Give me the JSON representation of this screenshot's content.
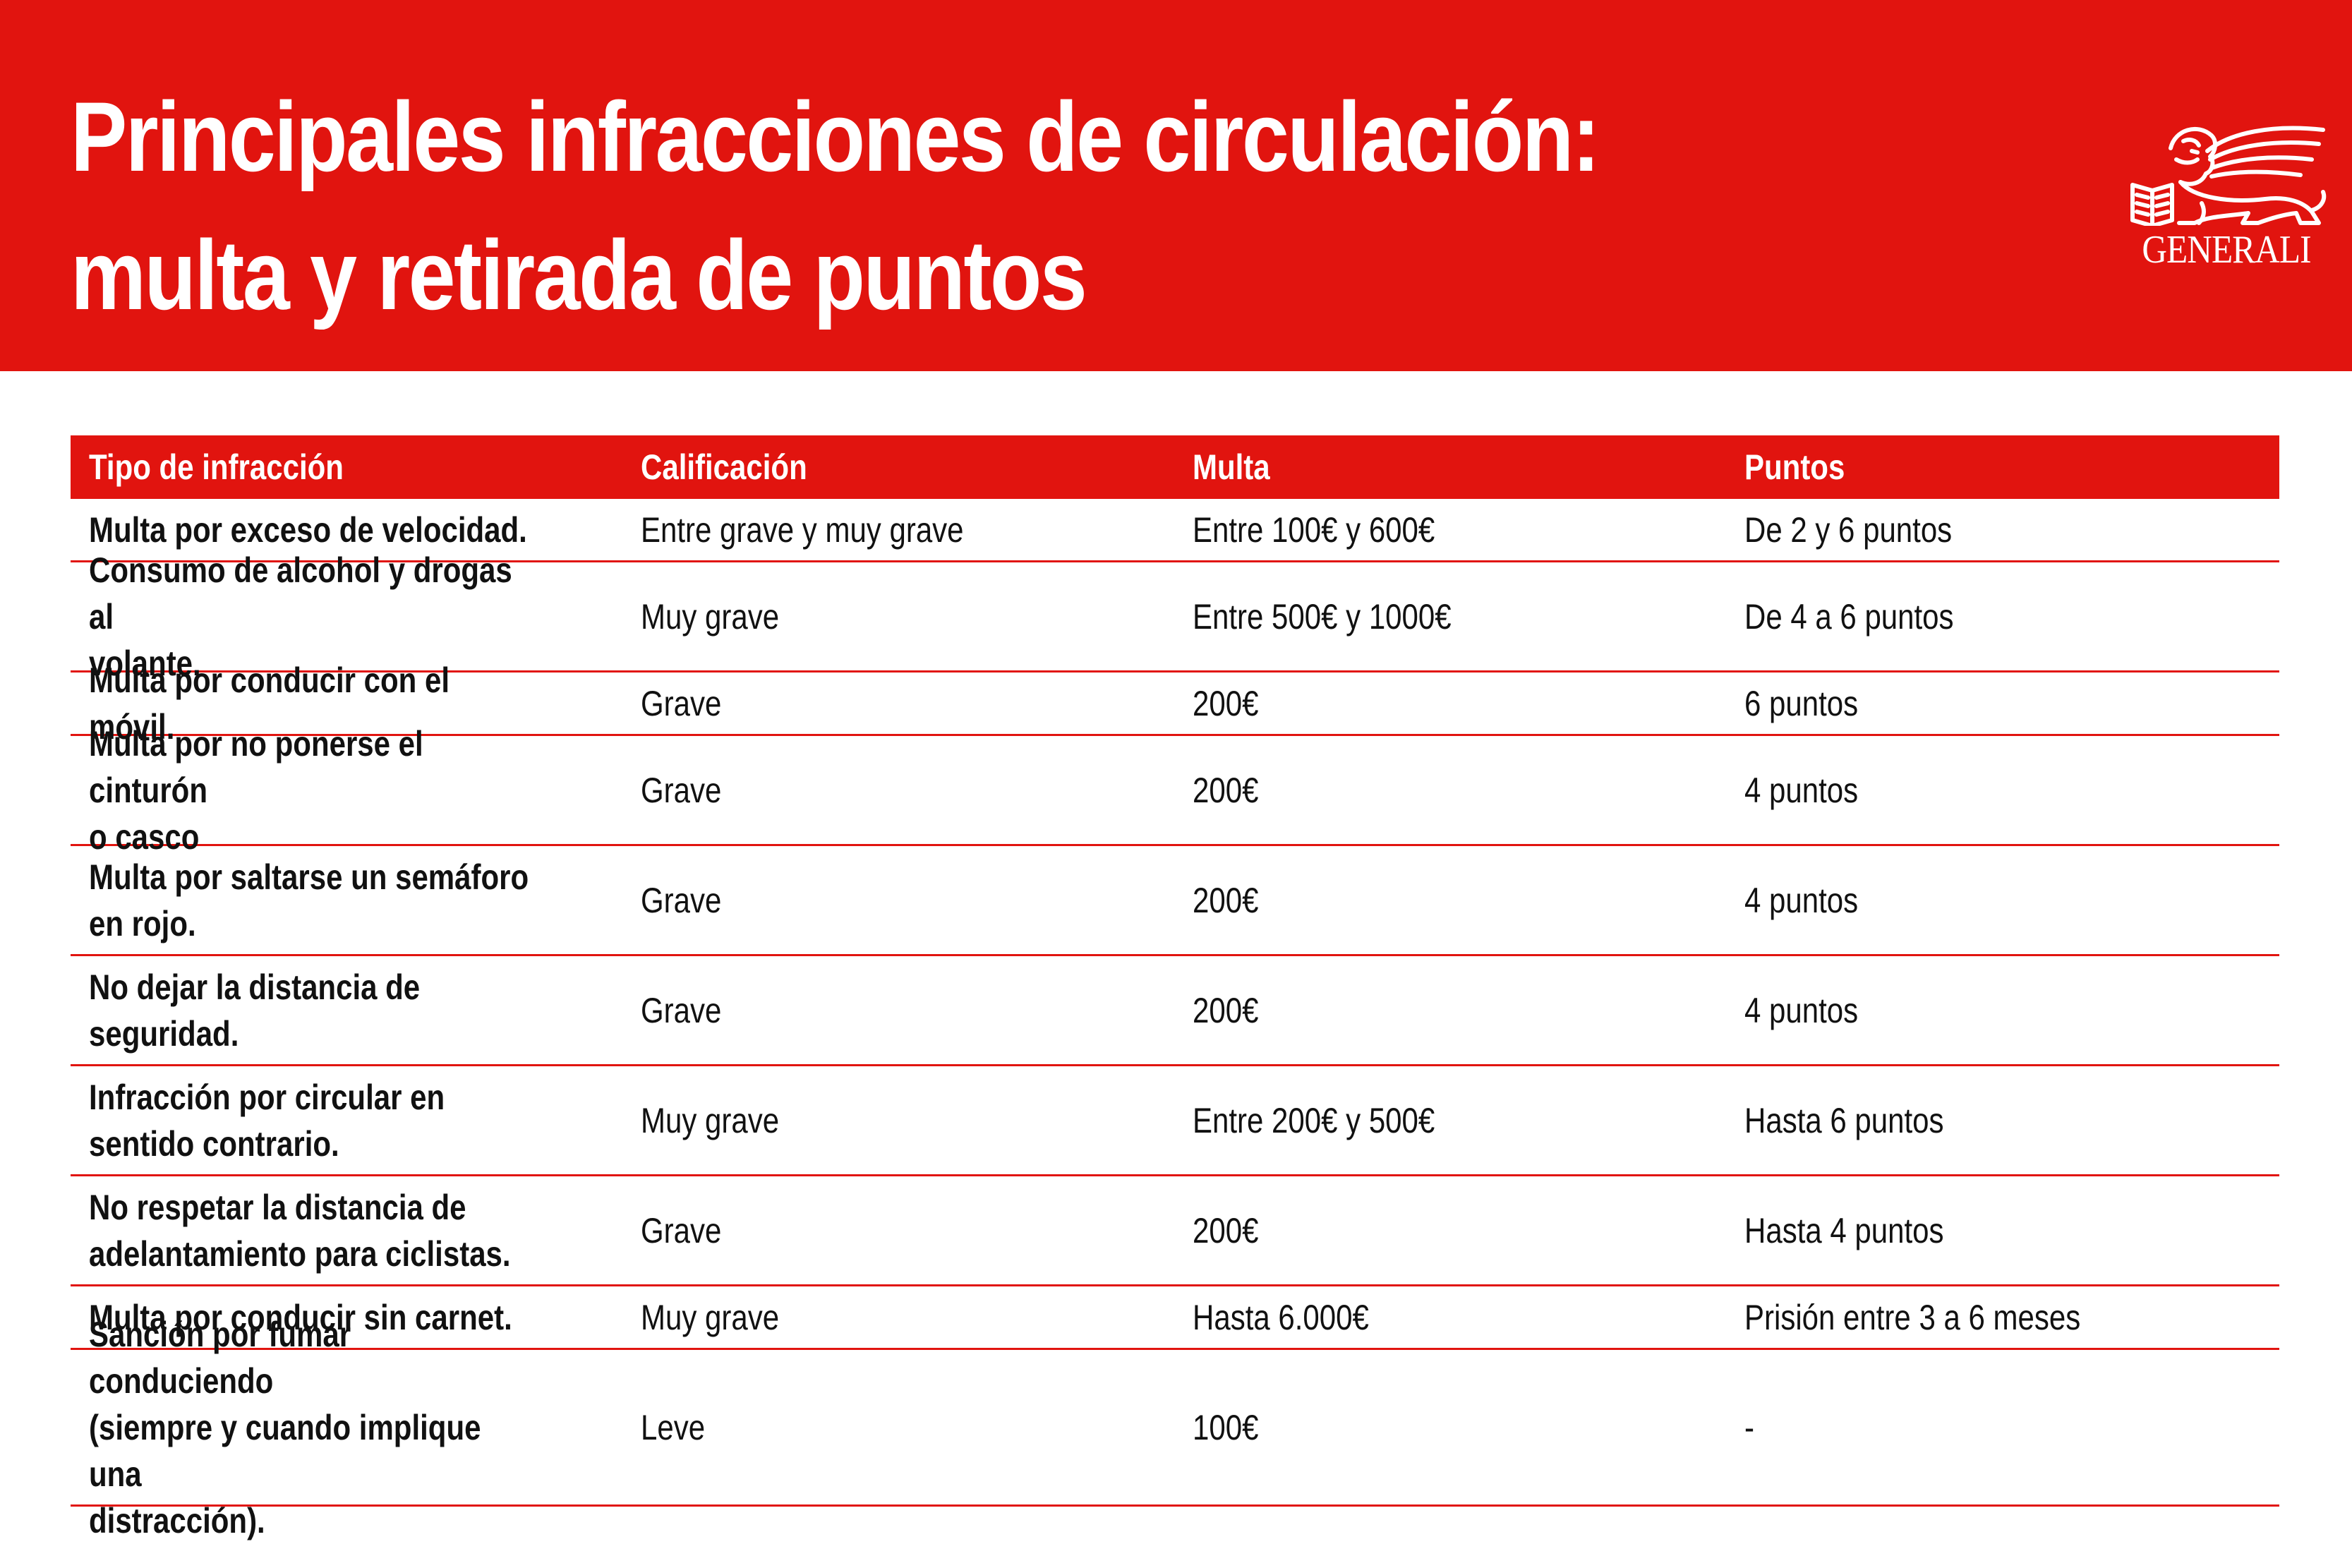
{
  "header": {
    "title_line1": "Principales infracciones de circulación:",
    "title_line2": "multa y retirada de puntos",
    "logo_text": "GENERALI",
    "logo_icon": "winged-lion-logo-icon",
    "brand_color": "#e1140f"
  },
  "table": {
    "columns": [
      "Tipo de infracción",
      "Calificación",
      "Multa",
      "Puntos"
    ],
    "rows": [
      {
        "tipo": "Multa por exceso de velocidad.",
        "calificacion": "Entre grave y muy grave",
        "multa": "Entre 100€ y 600€",
        "puntos": "De 2 y 6 puntos"
      },
      {
        "tipo": "Consumo de alcohol y drogas al\nvolante.",
        "calificacion": "Muy grave",
        "multa": "Entre 500€ y 1000€",
        "puntos": "De 4 a 6 puntos"
      },
      {
        "tipo": "Multa por conducir con el móvil.",
        "calificacion": "Grave",
        "multa": "200€",
        "puntos": "6 puntos"
      },
      {
        "tipo": "Multa por no ponerse el cinturón\no casco",
        "calificacion": "Grave",
        "multa": "200€",
        "puntos": "4 puntos"
      },
      {
        "tipo": "Multa por saltarse un semáforo\nen rojo.",
        "calificacion": "Grave",
        "multa": "200€",
        "puntos": "4 puntos"
      },
      {
        "tipo": "No dejar la distancia de\nseguridad.",
        "calificacion": "Grave",
        "multa": "200€",
        "puntos": "4 puntos"
      },
      {
        "tipo": "Infracción por circular en\nsentido contrario.",
        "calificacion": "Muy grave",
        "multa": "Entre 200€ y 500€",
        "puntos": "Hasta 6 puntos"
      },
      {
        "tipo": "No respetar la distancia de\nadelantamiento para ciclistas.",
        "calificacion": "Grave",
        "multa": "200€",
        "puntos": "Hasta 4 puntos"
      },
      {
        "tipo": "Multa por conducir sin carnet.",
        "calificacion": "Muy grave",
        "multa": "Hasta 6.000€",
        "puntos": "Prisión entre 3 a 6 meses"
      },
      {
        "tipo": "Sanción por fumar conduciendo\n(siempre y cuando implique una\ndistracción).",
        "calificacion": "Leve",
        "multa": "100€",
        "puntos": "-"
      }
    ]
  }
}
